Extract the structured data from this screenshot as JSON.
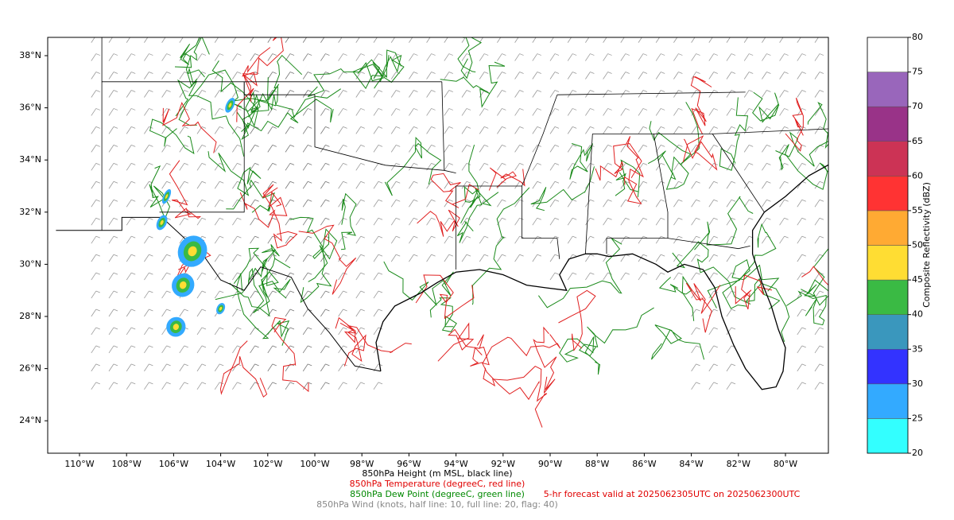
{
  "map": {
    "lat_labels": [
      "38°N",
      "36°N",
      "34°N",
      "32°N",
      "30°N",
      "28°N",
      "26°N",
      "24°N"
    ],
    "lon_labels": [
      "110°W",
      "108°W",
      "106°W",
      "104°W",
      "102°W",
      "100°W",
      "98°W",
      "96°W",
      "94°W",
      "92°W",
      "90°W",
      "88°W",
      "86°W",
      "84°W",
      "82°W",
      "80°W"
    ]
  },
  "colorbar": {
    "label": "Composite Reflectivity (dBZ)",
    "ticks": [
      20,
      25,
      30,
      35,
      40,
      45,
      50,
      55,
      60,
      65,
      70,
      75,
      80
    ],
    "colors": [
      "#33ffff",
      "#33aaff",
      "#3333ff",
      "#3a97bd",
      "#3aba44",
      "#ffdd33",
      "#ffaa33",
      "#ff3333",
      "#cc3355",
      "#993388",
      "#9966bb",
      "#ffffff"
    ]
  },
  "captions": {
    "height": "850hPa Height (m MSL, black line)",
    "temperature": "850hPa Temperature (degreeC, red line)",
    "dew_point": "850hPa Dew Point (degreeC, green line)",
    "forecast": "5-hr forecast valid at 2025062305UTC on 2025062300UTC",
    "wind": "850hPa Wind (knots, half line: 10, full line: 20, flag: 40)"
  }
}
